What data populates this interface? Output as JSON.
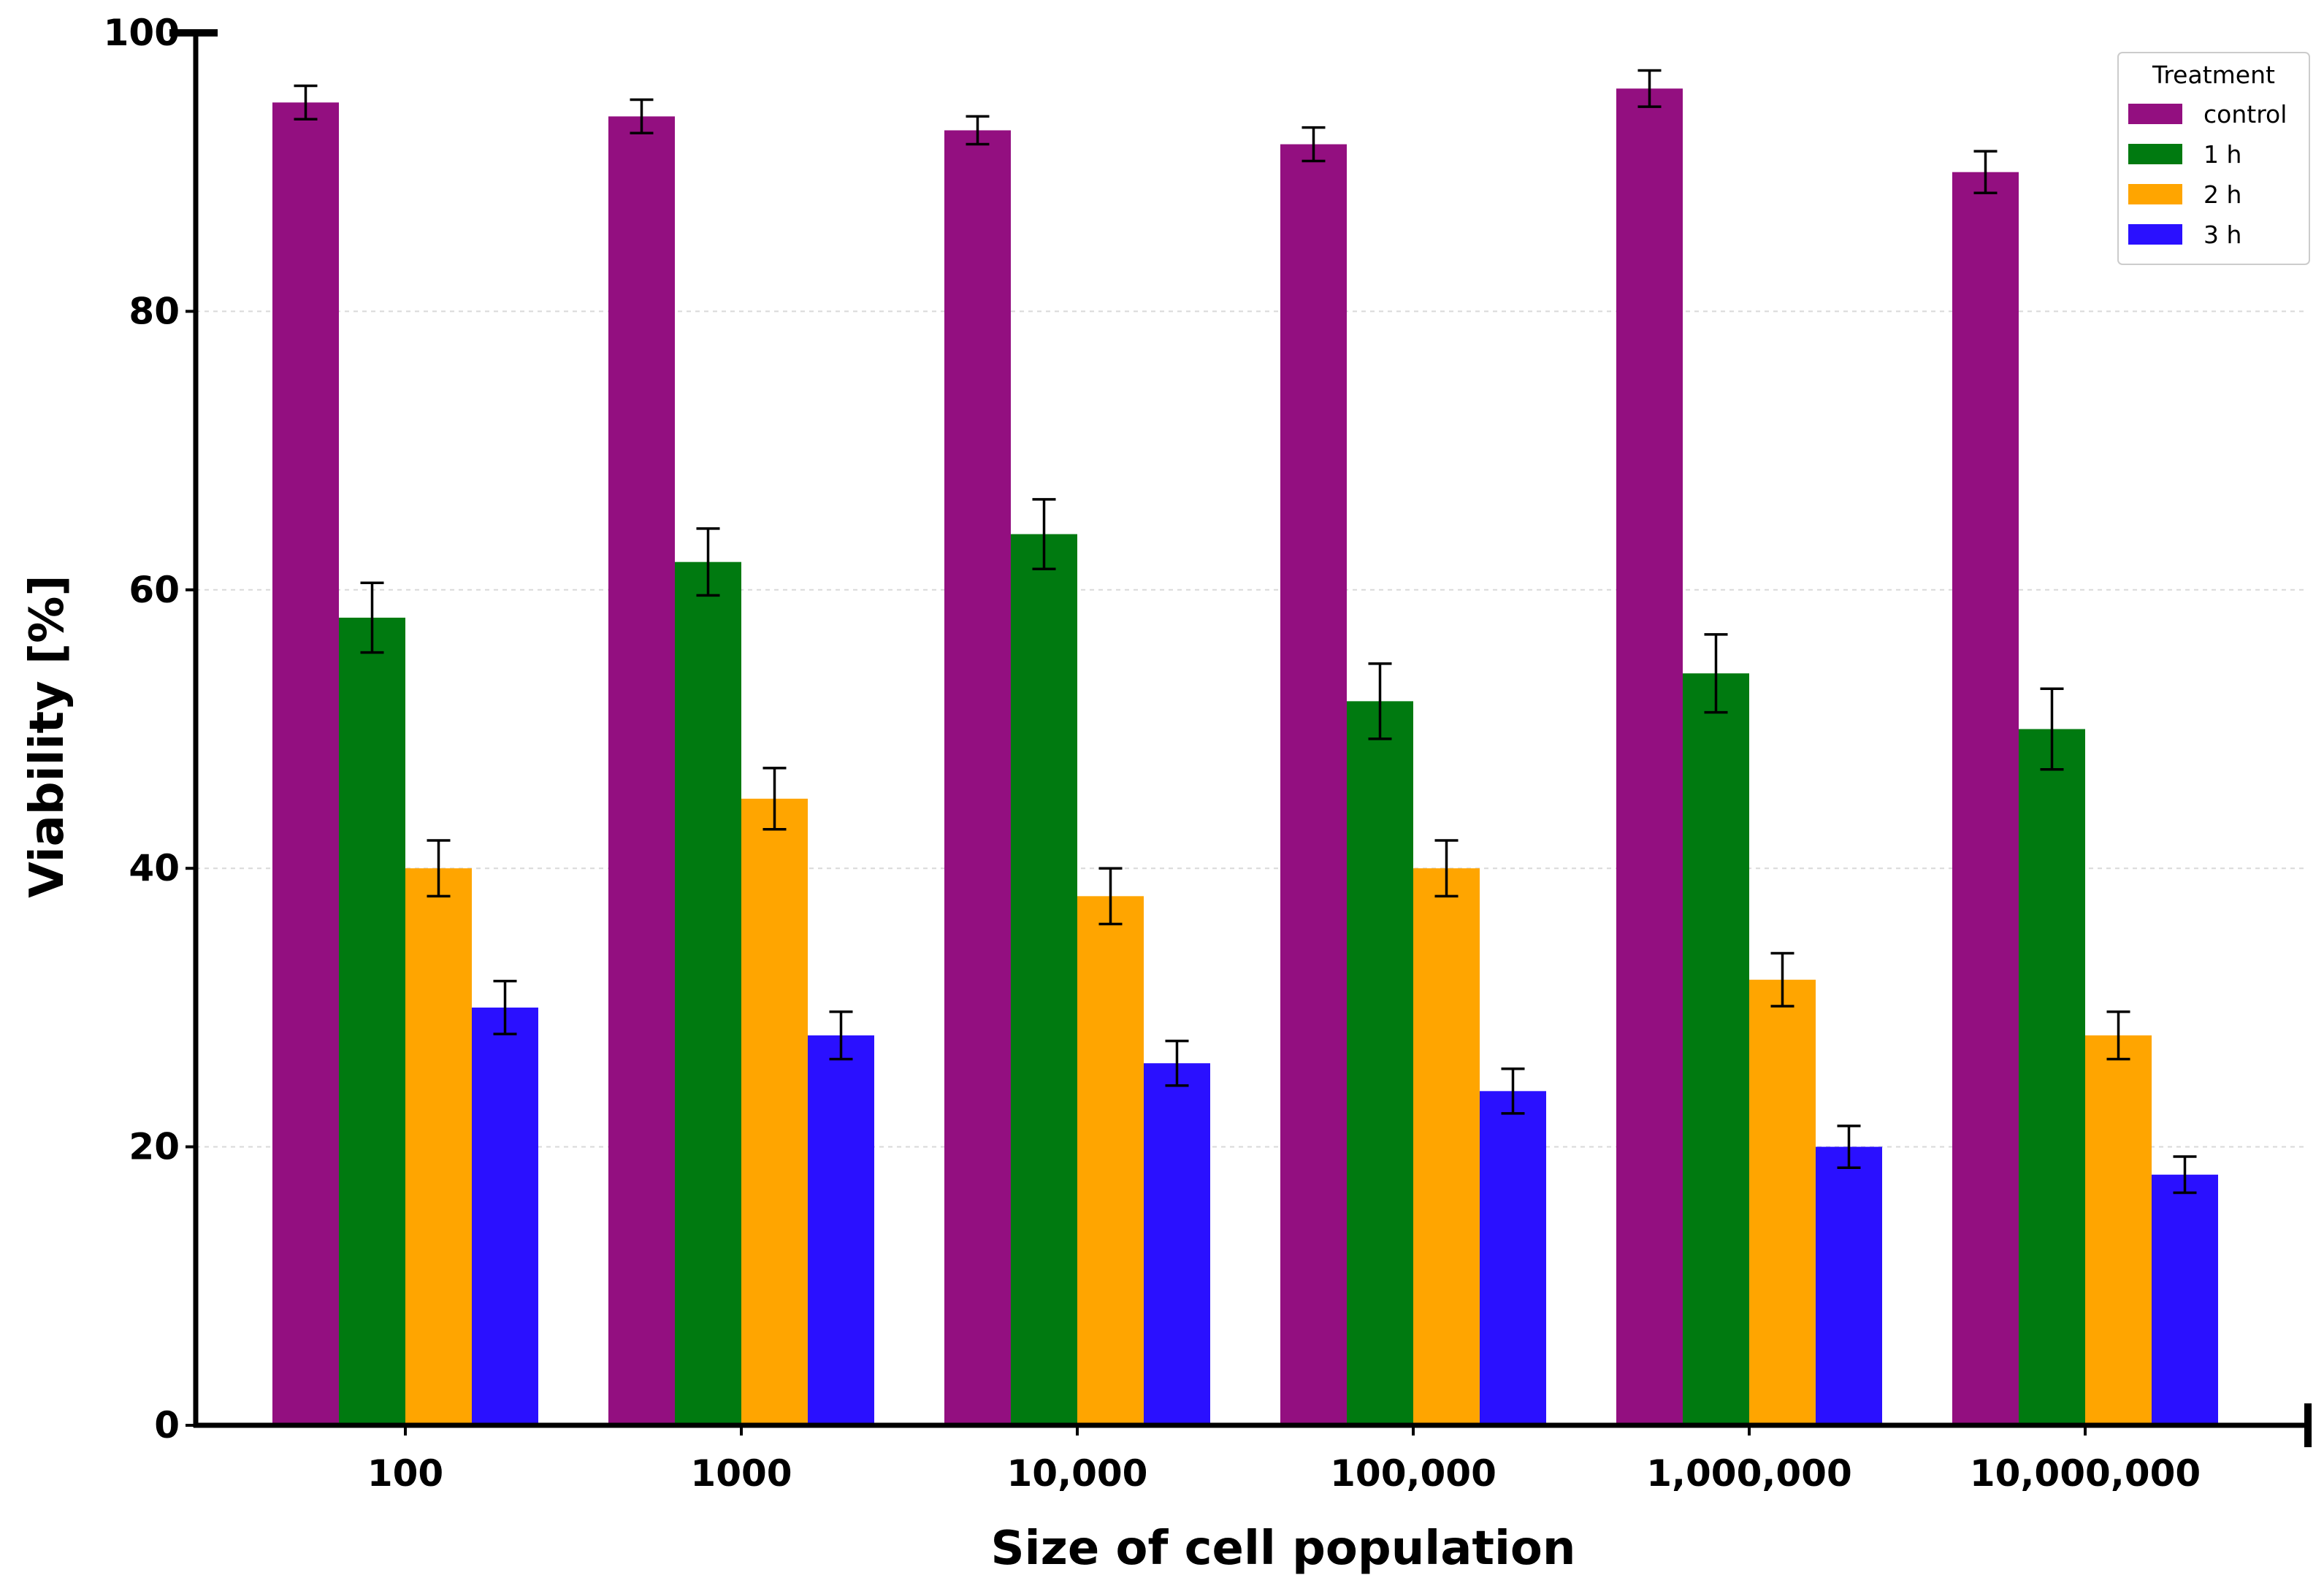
{
  "chart_data": {
    "type": "bar",
    "title": "",
    "xlabel": "Size of cell population",
    "ylabel": "Viability [%]",
    "ylim": [
      0,
      100
    ],
    "yticks": [
      0,
      20,
      40,
      60,
      80,
      100
    ],
    "grid": "horizontal dashed",
    "categories": [
      "100",
      "1000",
      "10,000",
      "100,000",
      "1,000,000",
      "10,000,000"
    ],
    "series": [
      {
        "name": "control",
        "color": "#930f80",
        "values": [
          95,
          94,
          93,
          92,
          96,
          90
        ],
        "errors": [
          1.2,
          1.2,
          1.0,
          1.2,
          1.3,
          1.5
        ]
      },
      {
        "name": "1 h",
        "color": "#007a10",
        "values": [
          58,
          62,
          64,
          52,
          54,
          50
        ],
        "errors": [
          2.5,
          2.4,
          2.5,
          2.7,
          2.8,
          2.9
        ]
      },
      {
        "name": "2 h",
        "color": "#ffa500",
        "values": [
          40,
          45,
          38,
          40,
          32,
          28
        ],
        "errors": [
          2.0,
          2.2,
          2.0,
          2.0,
          1.9,
          1.7
        ]
      },
      {
        "name": "3 h",
        "color": "#2a10ff",
        "values": [
          30,
          28,
          26,
          24,
          20,
          18
        ],
        "errors": [
          1.9,
          1.7,
          1.6,
          1.6,
          1.5,
          1.3
        ]
      }
    ],
    "legend": {
      "title": "Treatment",
      "placement": "top-right"
    }
  }
}
